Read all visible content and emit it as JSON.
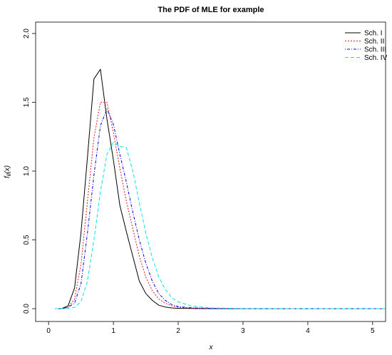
{
  "chart_data": {
    "type": "line",
    "title": "The PDF of MLE for example",
    "xlabel": "x",
    "ylabel": "f",
    "ylabel_subscript": "θ̂",
    "ylabel_suffix": "(x)",
    "xlim": [
      -0.2,
      5.2
    ],
    "ylim": [
      0,
      2.0
    ],
    "x_ticks": [
      0,
      1,
      2,
      3,
      4,
      5
    ],
    "y_ticks": [
      0.0,
      0.5,
      1.0,
      1.5,
      2.0
    ],
    "x_tick_labels": [
      "0",
      "1",
      "2",
      "3",
      "4",
      "5"
    ],
    "y_tick_labels": [
      "0.0",
      "0.5",
      "1.0",
      "1.5",
      "2.0"
    ],
    "legend_position": "top-right",
    "grid": false,
    "series": [
      {
        "name": "Sch. I",
        "color": "#000000",
        "dash": "solid",
        "x": [
          0.1,
          0.2,
          0.3,
          0.4,
          0.5,
          0.6,
          0.7,
          0.8,
          0.9,
          1.0,
          1.1,
          1.2,
          1.3,
          1.4,
          1.5,
          1.6,
          1.7,
          1.8,
          1.9,
          2.0,
          2.2,
          2.5,
          3.0,
          4.0,
          5.2
        ],
        "y": [
          0.0,
          0.0,
          0.02,
          0.15,
          0.55,
          1.1,
          1.67,
          1.74,
          1.38,
          1.08,
          0.75,
          0.56,
          0.38,
          0.2,
          0.11,
          0.06,
          0.025,
          0.012,
          0.005,
          0.002,
          0.001,
          0.0,
          0.0,
          0.0,
          0.0
        ]
      },
      {
        "name": "Sch. II",
        "color": "#e41a1c",
        "dash": "dotted",
        "x": [
          0.1,
          0.2,
          0.3,
          0.4,
          0.5,
          0.6,
          0.7,
          0.8,
          0.9,
          1.0,
          1.1,
          1.2,
          1.3,
          1.4,
          1.5,
          1.6,
          1.7,
          1.8,
          1.9,
          2.0,
          2.2,
          2.5,
          3.0,
          4.0,
          5.2
        ],
        "y": [
          0.0,
          0.0,
          0.01,
          0.07,
          0.32,
          0.78,
          1.24,
          1.5,
          1.5,
          1.28,
          1.02,
          0.78,
          0.58,
          0.38,
          0.23,
          0.13,
          0.07,
          0.04,
          0.02,
          0.01,
          0.004,
          0.001,
          0.0,
          0.0,
          0.0
        ]
      },
      {
        "name": "Sch. III",
        "color": "#0000ee",
        "dash": "dotdash",
        "x": [
          0.1,
          0.2,
          0.3,
          0.4,
          0.5,
          0.6,
          0.7,
          0.8,
          0.9,
          1.0,
          1.1,
          1.2,
          1.3,
          1.4,
          1.5,
          1.6,
          1.7,
          1.8,
          1.9,
          2.0,
          2.2,
          2.5,
          3.0,
          4.0,
          5.2
        ],
        "y": [
          0.0,
          0.0,
          0.01,
          0.04,
          0.18,
          0.55,
          0.97,
          1.33,
          1.45,
          1.34,
          1.12,
          0.92,
          0.7,
          0.5,
          0.33,
          0.2,
          0.11,
          0.06,
          0.03,
          0.015,
          0.006,
          0.002,
          0.0,
          0.0,
          0.0
        ]
      },
      {
        "name": "Sch. IV",
        "color": "#00e5ee",
        "dash": "dashed",
        "x": [
          0.1,
          0.2,
          0.3,
          0.4,
          0.5,
          0.6,
          0.7,
          0.8,
          0.9,
          1.0,
          1.1,
          1.2,
          1.3,
          1.4,
          1.5,
          1.6,
          1.7,
          1.8,
          1.9,
          2.0,
          2.2,
          2.5,
          3.0,
          4.0,
          5.2
        ],
        "y": [
          0.0,
          0.0,
          0.0,
          0.01,
          0.05,
          0.2,
          0.5,
          0.85,
          1.12,
          1.21,
          1.18,
          1.17,
          1.0,
          0.77,
          0.55,
          0.37,
          0.23,
          0.14,
          0.08,
          0.05,
          0.02,
          0.005,
          0.001,
          0.0,
          0.0
        ]
      }
    ]
  }
}
